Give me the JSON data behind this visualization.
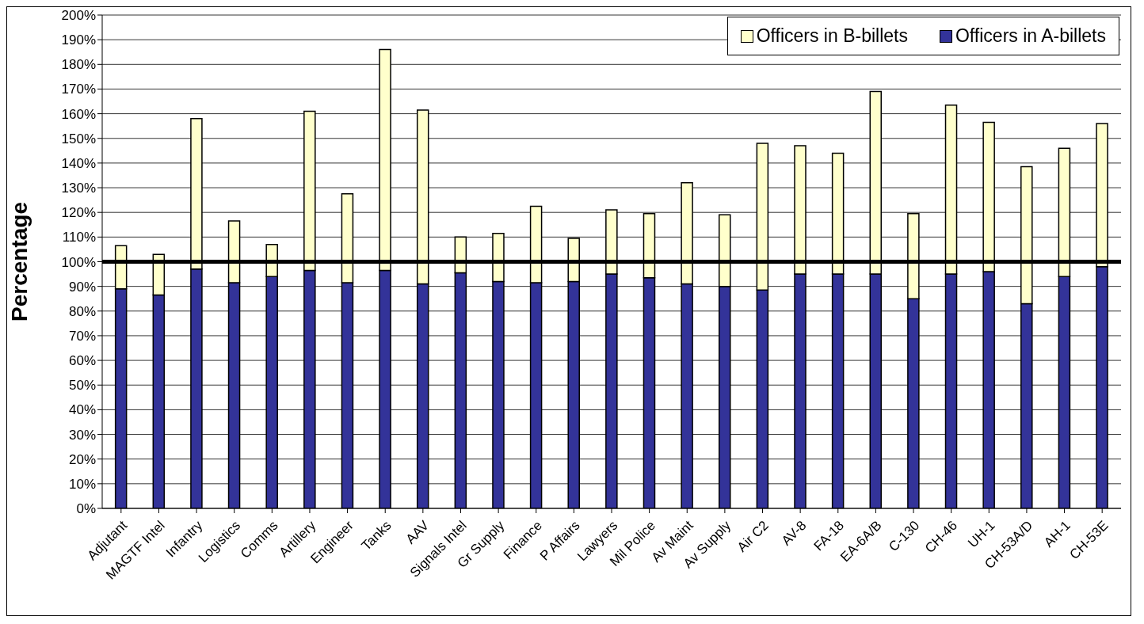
{
  "chart_data": {
    "type": "bar",
    "stacked": true,
    "ylabel": "Percentage",
    "categories": [
      "Adjutant",
      "MAGTF Intel",
      "Infantry",
      "Logistics",
      "Comms",
      "Artillery",
      "Engineer",
      "Tanks",
      "AAV",
      "Signals Intel",
      "Gr Supply",
      "Finance",
      "P Affairs",
      "Lawyers",
      "Mil Police",
      "Av Maint",
      "Av Supply",
      "Air C2",
      "AV-8",
      "FA-18",
      "EA-6A/B",
      "C-130",
      "CH-46",
      "UH-1",
      "CH-53A/D",
      "AH-1",
      "CH-53E"
    ],
    "series": [
      {
        "name": "Officers in A-billets",
        "color": "#333399",
        "values": [
          89,
          86.5,
          97,
          91.5,
          94,
          96.5,
          91.5,
          96.5,
          91,
          95.5,
          92,
          91.5,
          92,
          95,
          93.5,
          91,
          90,
          88.5,
          95,
          95,
          95,
          85,
          95,
          96,
          83,
          94,
          98
        ]
      },
      {
        "name": "Officers in B-billets",
        "color": "#ffffcc",
        "values": [
          17.5,
          16.5,
          61,
          25,
          13,
          64.5,
          36,
          89.5,
          70.5,
          14.5,
          19.5,
          31,
          17.5,
          26,
          26,
          41,
          29,
          59.5,
          52,
          49,
          74,
          34.5,
          68.5,
          60.5,
          55.5,
          52,
          58
        ]
      }
    ],
    "ylim": [
      0,
      200
    ],
    "yticks": [
      {
        "value": 0,
        "label": "0%"
      },
      {
        "value": 10,
        "label": "10%"
      },
      {
        "value": 20,
        "label": "20%"
      },
      {
        "value": 30,
        "label": "30%"
      },
      {
        "value": 40,
        "label": "40%"
      },
      {
        "value": 50,
        "label": "50%"
      },
      {
        "value": 60,
        "label": "60%"
      },
      {
        "value": 70,
        "label": "70%"
      },
      {
        "value": 80,
        "label": "80%"
      },
      {
        "value": 90,
        "label": "90%"
      },
      {
        "value": 100,
        "label": "100%"
      },
      {
        "value": 110,
        "label": "110%"
      },
      {
        "value": 120,
        "label": "120%"
      },
      {
        "value": 130,
        "label": "130%"
      },
      {
        "value": 140,
        "label": "140%"
      },
      {
        "value": 150,
        "label": "150%"
      },
      {
        "value": 160,
        "label": "160%"
      },
      {
        "value": 170,
        "label": "170%"
      },
      {
        "value": 180,
        "label": "180%"
      },
      {
        "value": 190,
        "label": "190%"
      },
      {
        "value": 200,
        "label": "200%"
      }
    ],
    "ref_lines": [
      {
        "axis": "y",
        "value": 100,
        "color": "#000000"
      }
    ],
    "grid": "y",
    "legend": "top right"
  }
}
